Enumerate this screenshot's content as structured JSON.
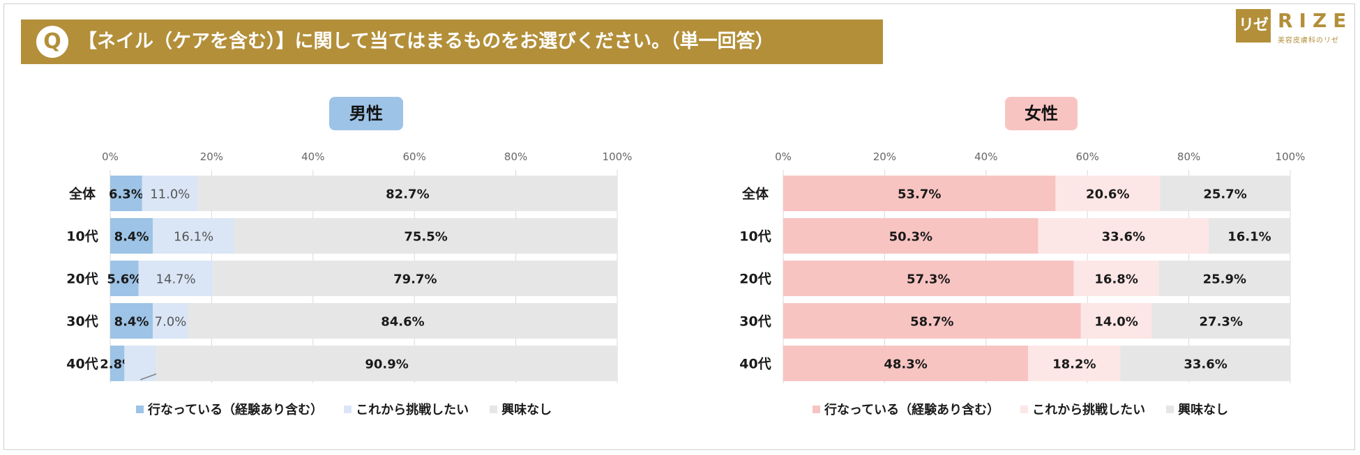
{
  "header": {
    "badge": "Q",
    "question": "【ネイル（ケアを含む）】に関して当てはまるものをお選びください。（単一回答）"
  },
  "logo": {
    "mark": "リゼ",
    "word": "RIZE",
    "tagline": "美容皮膚科のリゼ"
  },
  "colors": {
    "male": [
      "#9dc3e6",
      "#dae6f6",
      "#e6e6e6"
    ],
    "female": [
      "#f7c4c2",
      "#fde6e6",
      "#e6e6e6"
    ]
  },
  "chart_data": [
    {
      "type": "bar",
      "orientation": "horizontal",
      "stacked": true,
      "title": "男性",
      "categories": [
        "全体",
        "10代",
        "20代",
        "30代",
        "40代"
      ],
      "xlim": [
        0,
        100
      ],
      "xticks": [
        "0%",
        "20%",
        "40%",
        "60%",
        "80%",
        "100%"
      ],
      "grid": true,
      "legend_position": "bottom",
      "series": [
        {
          "name": "行なっている（経験あり含む）",
          "values": [
            6.3,
            8.4,
            5.6,
            8.4,
            2.8
          ],
          "labels": [
            "6.3%",
            "8.4%",
            "5.6%",
            "8.4%",
            "2.8%"
          ]
        },
        {
          "name": "これから挑戦したい",
          "values": [
            11.0,
            16.1,
            14.7,
            7.0,
            6.3
          ],
          "labels": [
            "11.0%",
            "16.1%",
            "14.7%",
            "7.0%",
            "6.3%"
          ]
        },
        {
          "name": "興味なし",
          "values": [
            82.7,
            75.5,
            79.7,
            84.6,
            90.9
          ],
          "labels": [
            "82.7%",
            "75.5%",
            "79.7%",
            "84.6%",
            "90.9%"
          ]
        }
      ]
    },
    {
      "type": "bar",
      "orientation": "horizontal",
      "stacked": true,
      "title": "女性",
      "categories": [
        "全体",
        "10代",
        "20代",
        "30代",
        "40代"
      ],
      "xlim": [
        0,
        100
      ],
      "xticks": [
        "0%",
        "20%",
        "40%",
        "60%",
        "80%",
        "100%"
      ],
      "grid": true,
      "legend_position": "bottom",
      "series": [
        {
          "name": "行なっている（経験あり含む）",
          "values": [
            53.7,
            50.3,
            57.3,
            58.7,
            48.3
          ],
          "labels": [
            "53.7%",
            "50.3%",
            "57.3%",
            "58.7%",
            "48.3%"
          ]
        },
        {
          "name": "これから挑戦したい",
          "values": [
            20.6,
            33.6,
            16.8,
            14.0,
            18.2
          ],
          "labels": [
            "20.6%",
            "33.6%",
            "16.8%",
            "14.0%",
            "18.2%"
          ]
        },
        {
          "name": "興味なし",
          "values": [
            25.7,
            16.1,
            25.9,
            27.3,
            33.6
          ],
          "labels": [
            "25.7%",
            "16.1%",
            "25.9%",
            "27.3%",
            "33.6%"
          ]
        }
      ]
    }
  ]
}
